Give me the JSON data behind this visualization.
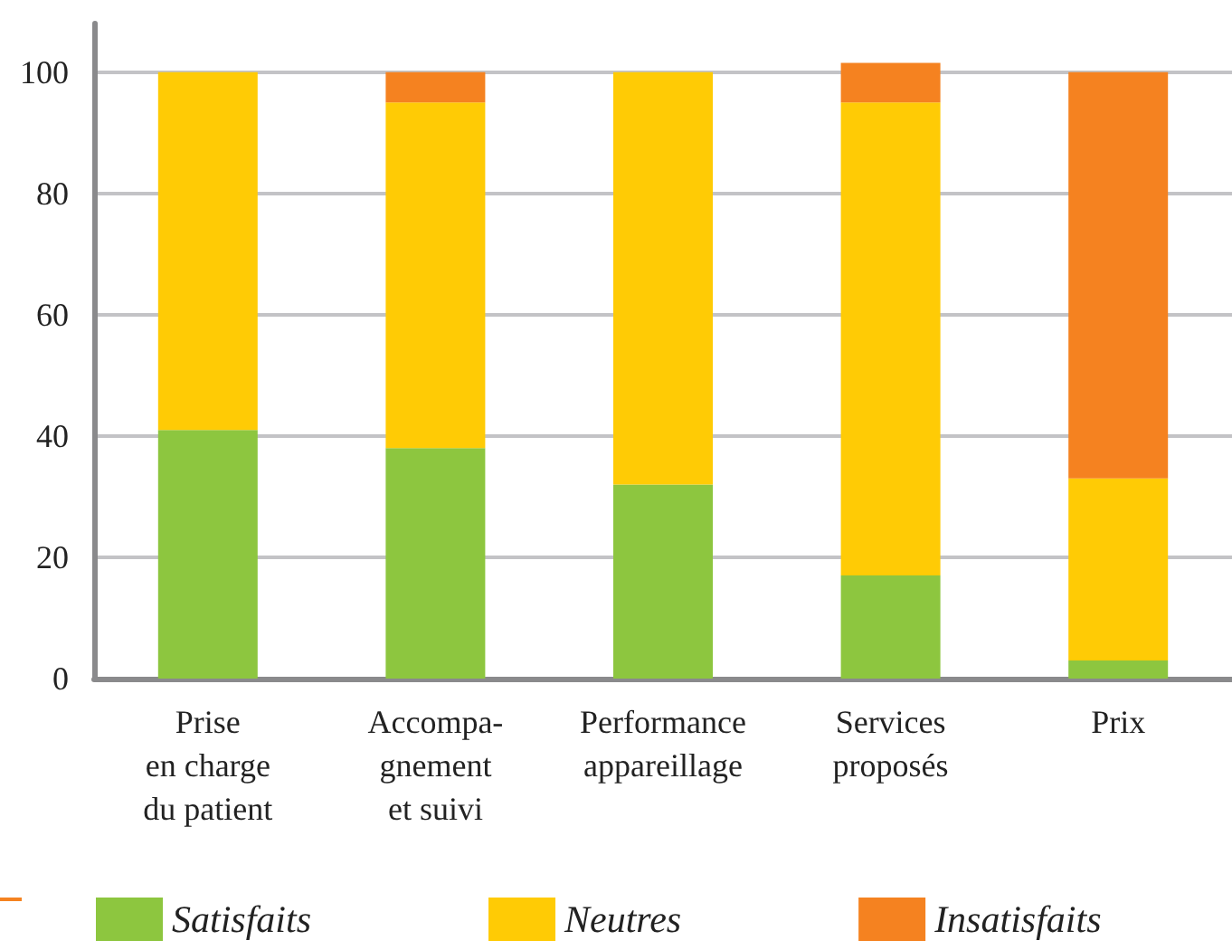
{
  "chart_data": {
    "type": "bar",
    "stacked": true,
    "categories": [
      "Prise\nen charge\ndu patient",
      "Accompa-\ngnement\net suivi",
      "Performance\nappareillage",
      "Services\nproposés",
      "Prix"
    ],
    "series": [
      {
        "name": "Satisfaits",
        "color": "#8dc63f",
        "values": [
          41,
          38,
          32,
          17,
          3
        ]
      },
      {
        "name": "Neutres",
        "color": "#ffcb05",
        "values": [
          59,
          57,
          68,
          78,
          30
        ]
      },
      {
        "name": "Insatisfaits",
        "color": "#f58220",
        "values": [
          0,
          5,
          0,
          6.5,
          67
        ]
      }
    ],
    "ylim": [
      0,
      108
    ],
    "yticks": [
      0,
      20,
      40,
      60,
      80,
      100
    ],
    "grid": "y",
    "legend": "bottom"
  }
}
